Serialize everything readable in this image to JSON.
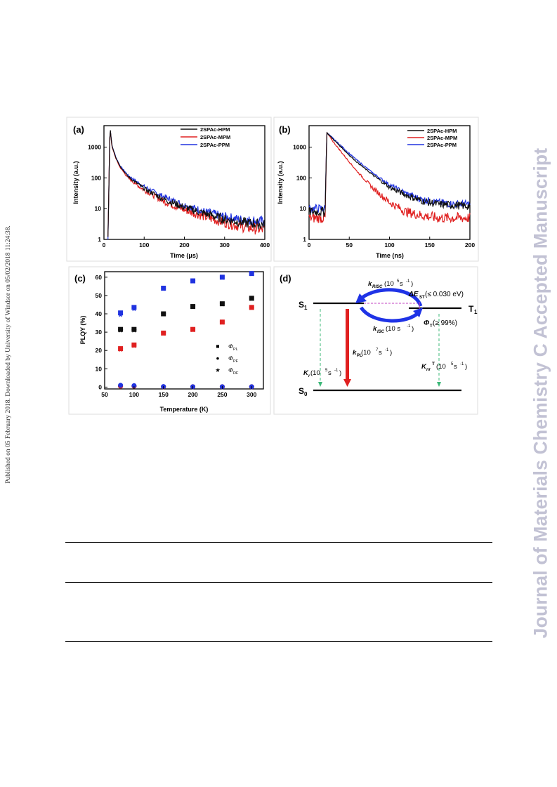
{
  "side_note": "Published on 05 February 2018. Downloaded by University of Windsor on 05/02/2018 11:24:38.",
  "journal_banner": "Journal of Materials Chemistry C Accepted Manuscript",
  "colors": {
    "black_series": "#111111",
    "red_series": "#e02020",
    "blue_series": "#2033e0",
    "green_arrow": "#3cb878",
    "purple_line": "#c040c0"
  },
  "panel_a": {
    "label": "(a)",
    "xlabel": "Time (μs)",
    "ylabel": "Intensity (a.u.)",
    "x_ticks": [
      "0",
      "100",
      "200",
      "300",
      "400"
    ],
    "y_ticks": [
      "1",
      "10",
      "100",
      "1000"
    ],
    "legend": [
      "2SPAc-HPM",
      "2SPAc-MPM",
      "2SPAc-PPM"
    ]
  },
  "panel_b": {
    "label": "(b)",
    "xlabel": "Time (ns)",
    "ylabel": "Intensity (a.u.)",
    "x_ticks": [
      "0",
      "50",
      "100",
      "150",
      "200"
    ],
    "y_ticks": [
      "1",
      "10",
      "100",
      "1000"
    ],
    "legend": [
      "2SPAc-HPM",
      "2SPAc-MPM",
      "2SPAc-PPM"
    ]
  },
  "panel_c": {
    "label": "(c)",
    "xlabel": "Temperature (K)",
    "ylabel": "PLQY (%)",
    "x_ticks": [
      "50",
      "100",
      "150",
      "200",
      "250",
      "300"
    ],
    "y_ticks": [
      "0",
      "10",
      "20",
      "30",
      "40",
      "50",
      "60"
    ],
    "legend": [
      {
        "symbol": "■",
        "main": "Φ",
        "sub": "PL"
      },
      {
        "symbol": "●",
        "main": "Φ",
        "sub": "PF"
      },
      {
        "symbol": "★",
        "main": "Φ",
        "sub": "DF"
      }
    ]
  },
  "chart_data": [
    {
      "type": "line",
      "panel": "(a)",
      "xlabel": "Time (μs)",
      "ylabel": "Intensity (a.u.)",
      "xlim": [
        0,
        400
      ],
      "ylim": [
        1,
        5000
      ],
      "yscale": "log",
      "legend_position": "top-right",
      "series": [
        {
          "name": "2SPAc-HPM",
          "color": "#111111",
          "x": [
            10,
            15,
            20,
            30,
            40,
            60,
            80,
            100,
            150,
            200,
            250,
            300,
            350,
            400
          ],
          "y": [
            1,
            4500,
            1100,
            450,
            240,
            110,
            70,
            45,
            20,
            11,
            7,
            4.5,
            3.5,
            3
          ]
        },
        {
          "name": "2SPAc-MPM",
          "color": "#e02020",
          "x": [
            10,
            15,
            20,
            30,
            40,
            60,
            80,
            100,
            150,
            200,
            250,
            300,
            350,
            400
          ],
          "y": [
            1,
            4500,
            1000,
            420,
            220,
            100,
            62,
            40,
            17,
            9,
            5.5,
            3.5,
            2.5,
            2
          ]
        },
        {
          "name": "2SPAc-PPM",
          "color": "#2033e0",
          "x": [
            10,
            15,
            20,
            30,
            40,
            60,
            80,
            100,
            150,
            200,
            250,
            300,
            350,
            400
          ],
          "y": [
            1,
            4500,
            1100,
            460,
            250,
            120,
            78,
            52,
            24,
            13,
            8,
            5.5,
            4.2,
            3.8
          ]
        }
      ]
    },
    {
      "type": "line",
      "panel": "(b)",
      "xlabel": "Time (ns)",
      "ylabel": "Intensity (a.u.)",
      "xlim": [
        0,
        200
      ],
      "ylim": [
        1,
        5000
      ],
      "yscale": "log",
      "legend_position": "top-right",
      "series": [
        {
          "name": "2SPAc-HPM",
          "color": "#111111",
          "x": [
            0,
            20,
            22,
            30,
            40,
            50,
            60,
            80,
            100,
            120,
            140,
            160,
            180,
            200
          ],
          "y": [
            8,
            8,
            3000,
            1800,
            1000,
            550,
            320,
            120,
            50,
            28,
            18,
            14,
            13,
            12
          ]
        },
        {
          "name": "2SPAc-MPM",
          "color": "#e02020",
          "x": [
            0,
            20,
            22,
            30,
            40,
            50,
            60,
            80,
            100,
            120,
            140,
            160,
            180,
            200
          ],
          "y": [
            5,
            5,
            3000,
            1500,
            700,
            330,
            160,
            45,
            16,
            8,
            6,
            5,
            5,
            5
          ]
        },
        {
          "name": "2SPAc-PPM",
          "color": "#2033e0",
          "x": [
            0,
            20,
            22,
            30,
            40,
            50,
            60,
            80,
            100,
            120,
            140,
            160,
            180,
            200
          ],
          "y": [
            10,
            10,
            3000,
            1900,
            1100,
            620,
            370,
            140,
            60,
            32,
            20,
            16,
            14,
            14
          ]
        }
      ]
    },
    {
      "type": "scatter",
      "panel": "(c)",
      "xlabel": "Temperature (K)",
      "ylabel": "PLQY (%)",
      "xlim": [
        50,
        320
      ],
      "ylim": [
        -1,
        63
      ],
      "legend_position": "center-right",
      "x": [
        77,
        100,
        150,
        200,
        250,
        300
      ],
      "series": [
        {
          "name": "HPM Φ_PL",
          "color": "#111111",
          "marker": "square",
          "values": [
            31.5,
            31.5,
            40,
            44,
            45.5,
            48.5
          ]
        },
        {
          "name": "HPM Φ_PF",
          "color": "#111111",
          "marker": "circle",
          "values": [
            0.5,
            0.5,
            0.2,
            0.2,
            0.2,
            0.2
          ]
        },
        {
          "name": "HPM Φ_DF",
          "color": "#111111",
          "marker": "star",
          "values": [
            31,
            31,
            39.8,
            43.8,
            45.3,
            48.3
          ]
        },
        {
          "name": "MPM Φ_PL",
          "color": "#e02020",
          "marker": "square",
          "values": [
            21,
            23,
            29.5,
            31.5,
            35.5,
            43.5
          ]
        },
        {
          "name": "MPM Φ_PF",
          "color": "#e02020",
          "marker": "circle",
          "values": [
            0.5,
            0.5,
            0.2,
            0.2,
            0.2,
            0.2
          ]
        },
        {
          "name": "MPM Φ_DF",
          "color": "#e02020",
          "marker": "star",
          "values": [
            20.5,
            22.5,
            29.3,
            31.3,
            35.3,
            43.3
          ]
        },
        {
          "name": "PPM Φ_PL",
          "color": "#2033e0",
          "marker": "square",
          "values": [
            40.5,
            43.5,
            54,
            58,
            60,
            62
          ]
        },
        {
          "name": "PPM Φ_PF",
          "color": "#2033e0",
          "marker": "circle",
          "values": [
            1,
            0.8,
            0.3,
            0.2,
            0.2,
            0.2
          ]
        },
        {
          "name": "PPM Φ_DF",
          "color": "#2033e0",
          "marker": "star",
          "values": [
            39.5,
            42.7,
            53.7,
            57.8,
            59.8,
            61.8
          ]
        }
      ]
    }
  ],
  "panel_d": {
    "label": "(d)",
    "s1": {
      "main": "S",
      "sub": "1"
    },
    "t1": {
      "main": "T",
      "sub": "1"
    },
    "s0": {
      "main": "S",
      "sub": "0"
    },
    "k_risc": {
      "main": "k",
      "sub": "RISC",
      "rate": "(10",
      "sup": "5",
      "unit": " s",
      "unit_sup": "-1",
      "close": ")"
    },
    "delta_est": {
      "main": "ΔE",
      "sub": "ST",
      "rest": " (≤ 0.030 eV)"
    },
    "k_isc": {
      "main": "k",
      "sub": "ISC",
      "rest": " (10 s",
      "sup": "-1",
      "close": ")"
    },
    "phi_t": {
      "main": "Φ",
      "sub": "T",
      "rest": " (≥ 99%)"
    },
    "k_pl": {
      "main": "k",
      "sub": "PL",
      "rate": " (10",
      "sup": "7",
      "unit": " s",
      "unit_sup": "-1",
      "close": ")"
    },
    "k_r": {
      "main": "K",
      "sub": "r",
      "rate": " (10",
      "sup": "5",
      "unit": " s",
      "unit_sup": "-1",
      "close": ")"
    },
    "k_nr": {
      "main": "K",
      "sub": "nr",
      "sup_t": "T",
      "rate": " (10",
      "sup": "5",
      "unit": " s",
      "unit_sup": "-1",
      "close": ")"
    }
  }
}
